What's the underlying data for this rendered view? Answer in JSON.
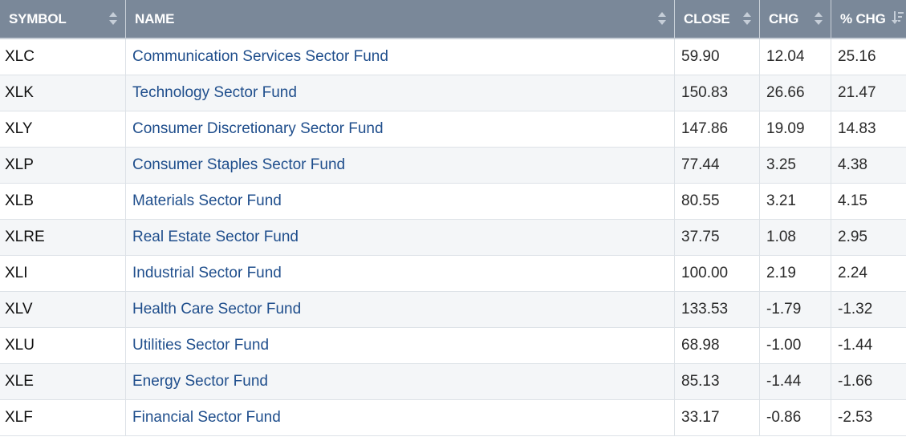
{
  "table": {
    "columns": [
      {
        "key": "symbol",
        "label": "SYMBOL",
        "sort": "none"
      },
      {
        "key": "name",
        "label": "NAME",
        "sort": "none"
      },
      {
        "key": "close",
        "label": "CLOSE",
        "sort": "none"
      },
      {
        "key": "chg",
        "label": "CHG",
        "sort": "none"
      },
      {
        "key": "pct_chg",
        "label": "% CHG",
        "sort": "descending"
      }
    ],
    "rows": [
      {
        "symbol": "XLC",
        "name": "Communication Services Sector Fund",
        "close": "59.90",
        "chg": "12.04",
        "pct_chg": "25.16"
      },
      {
        "symbol": "XLK",
        "name": "Technology Sector Fund",
        "close": "150.83",
        "chg": "26.66",
        "pct_chg": "21.47"
      },
      {
        "symbol": "XLY",
        "name": "Consumer Discretionary Sector Fund",
        "close": "147.86",
        "chg": "19.09",
        "pct_chg": "14.83"
      },
      {
        "symbol": "XLP",
        "name": "Consumer Staples Sector Fund",
        "close": "77.44",
        "chg": "3.25",
        "pct_chg": "4.38"
      },
      {
        "symbol": "XLB",
        "name": "Materials Sector Fund",
        "close": "80.55",
        "chg": "3.21",
        "pct_chg": "4.15"
      },
      {
        "symbol": "XLRE",
        "name": "Real Estate Sector Fund",
        "close": "37.75",
        "chg": "1.08",
        "pct_chg": "2.95"
      },
      {
        "symbol": "XLI",
        "name": "Industrial Sector Fund",
        "close": "100.00",
        "chg": "2.19",
        "pct_chg": "2.24"
      },
      {
        "symbol": "XLV",
        "name": "Health Care Sector Fund",
        "close": "133.53",
        "chg": "-1.79",
        "pct_chg": "-1.32"
      },
      {
        "symbol": "XLU",
        "name": "Utilities Sector Fund",
        "close": "68.98",
        "chg": "-1.00",
        "pct_chg": "-1.44"
      },
      {
        "symbol": "XLE",
        "name": "Energy Sector Fund",
        "close": "85.13",
        "chg": "-1.44",
        "pct_chg": "-1.66"
      },
      {
        "symbol": "XLF",
        "name": "Financial Sector Fund",
        "close": "33.17",
        "chg": "-0.86",
        "pct_chg": "-2.53"
      }
    ]
  },
  "colors": {
    "header_bg": "#7a8899",
    "header_text": "#ffffff",
    "link": "#1f4e8c",
    "alt_row": "#f4f6f8",
    "border": "#dde2e7"
  },
  "icons": {
    "sortable": "sort-icon",
    "sorted_desc": "sort-descending-icon"
  }
}
